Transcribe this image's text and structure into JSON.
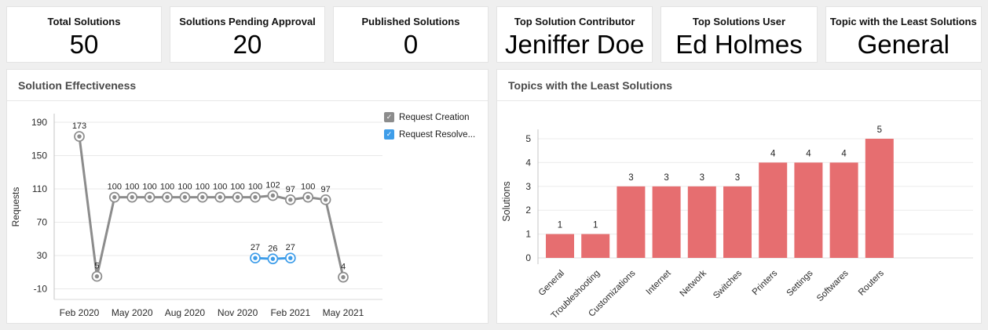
{
  "cards": [
    {
      "label": "Total Solutions",
      "value": "50"
    },
    {
      "label": "Solutions Pending Approval",
      "value": "20"
    },
    {
      "label": "Published Solutions",
      "value": "0"
    },
    {
      "label": "Top Solution Contributor",
      "value": "Jeniffer Doe"
    },
    {
      "label": "Top Solutions User",
      "value": "Ed Holmes"
    },
    {
      "label": "Topic with the Least Solutions",
      "value": "General"
    }
  ],
  "panels": {
    "line_title": "Solution Effectiveness",
    "bar_title": "Topics with the Least Solutions"
  },
  "chart_data": [
    {
      "type": "line",
      "title": "Solution Effectiveness",
      "ylabel": "Requests",
      "ylim": [
        -10,
        190
      ],
      "yticks": [
        190,
        150,
        110,
        70,
        30,
        -10
      ],
      "months": [
        "Feb 2020",
        "Mar 2020",
        "Apr 2020",
        "May 2020",
        "Jun 2020",
        "Jul 2020",
        "Aug 2020",
        "Sep 2020",
        "Oct 2020",
        "Nov 2020",
        "Dec 2020",
        "Jan 2021",
        "Feb 2021",
        "Mar 2021",
        "Apr 2021",
        "May 2021"
      ],
      "x_tick_labels": [
        "Feb 2020",
        "May 2020",
        "Aug 2020",
        "Nov 2020",
        "Feb 2021",
        "May 2021"
      ],
      "x_tick_every": 3,
      "grid": true,
      "legend_position": "right",
      "series": [
        {
          "name": "Request Creation",
          "color": "#8c8c8c",
          "x_start_index": 0,
          "values": [
            173,
            5,
            100,
            100,
            100,
            100,
            100,
            100,
            100,
            100,
            100,
            102,
            97,
            100,
            97,
            4
          ]
        },
        {
          "name": "Request Resolve...",
          "color": "#3e9de9",
          "x_start_index": 10,
          "values": [
            27,
            26,
            27
          ]
        }
      ],
      "legend": [
        {
          "label": "Request Creation",
          "color": "#8c8c8c",
          "checked": true,
          "check_glyph": "✓"
        },
        {
          "label": "Request Resolve...",
          "color": "#3e9de9",
          "checked": true,
          "check_glyph": "✓"
        }
      ]
    },
    {
      "type": "bar",
      "title": "Topics with the Least Solutions",
      "ylabel": "Solutions",
      "ylim": [
        0,
        5
      ],
      "yticks": [
        0,
        1,
        2,
        3,
        4,
        5
      ],
      "grid": true,
      "bar_color": "#e66e70",
      "categories": [
        "General",
        "Troubleshooting",
        "Customizations",
        "Internet",
        "Network",
        "Switches",
        "Printers",
        "Settings",
        "Softwares",
        "Routers"
      ],
      "values": [
        1,
        1,
        3,
        3,
        3,
        3,
        4,
        4,
        4,
        5
      ]
    }
  ]
}
